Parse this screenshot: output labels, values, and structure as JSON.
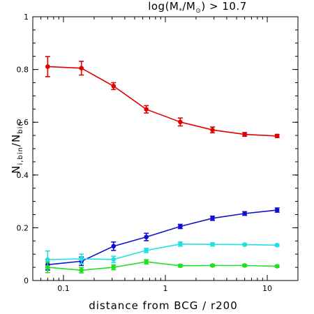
{
  "chart_data": {
    "type": "line",
    "title": "log(M*/M⊙) > 10.7",
    "title_parts": {
      "prefix": "log(M",
      "star": "*",
      "mid": "/M",
      "sun": "⊙",
      "suffix": ") > 10.7"
    },
    "xlabel": "distance from BCG / r200",
    "ylabel": "N_i,bin / N_bin",
    "ylabel_parts": {
      "n1": "N",
      "sub1": "i,bin",
      "slash": "/",
      "n2": "N",
      "sub2": "bin"
    },
    "xscale": "log",
    "xlim": [
      0.05,
      20
    ],
    "ylim": [
      0,
      1
    ],
    "xtick_labels": [
      "0.1",
      "1",
      "10"
    ],
    "ytick_labels": [
      "0",
      "0.2",
      "0.4",
      "0.6",
      "0.8",
      "1"
    ],
    "x": [
      0.07,
      0.15,
      0.31,
      0.65,
      1.4,
      2.9,
      6.0,
      12.5
    ],
    "series": [
      {
        "color": "#e00000",
        "values": [
          0.811,
          0.805,
          0.737,
          0.649,
          0.601,
          0.571,
          0.554,
          0.548
        ],
        "errors": [
          0.038,
          0.026,
          0.013,
          0.014,
          0.015,
          0.011,
          0.007,
          0.006
        ]
      },
      {
        "color": "#1010d0",
        "values": [
          0.06,
          0.073,
          0.13,
          0.165,
          0.205,
          0.236,
          0.254,
          0.267
        ],
        "errors": [
          0.02,
          0.016,
          0.016,
          0.014,
          0.008,
          0.008,
          0.007,
          0.008
        ]
      },
      {
        "color": "#20e0e0",
        "values": [
          0.079,
          0.082,
          0.08,
          0.114,
          0.138,
          0.137,
          0.136,
          0.134
        ],
        "errors": [
          0.033,
          0.018,
          0.012,
          0.008,
          0.008,
          0.006,
          0.004,
          0.004
        ]
      },
      {
        "color": "#20e020",
        "values": [
          0.05,
          0.039,
          0.05,
          0.071,
          0.056,
          0.057,
          0.057,
          0.054
        ],
        "errors": [
          0.02,
          0.01,
          0.009,
          0.008,
          0.005,
          0.004,
          0.004,
          0.004
        ]
      }
    ]
  }
}
